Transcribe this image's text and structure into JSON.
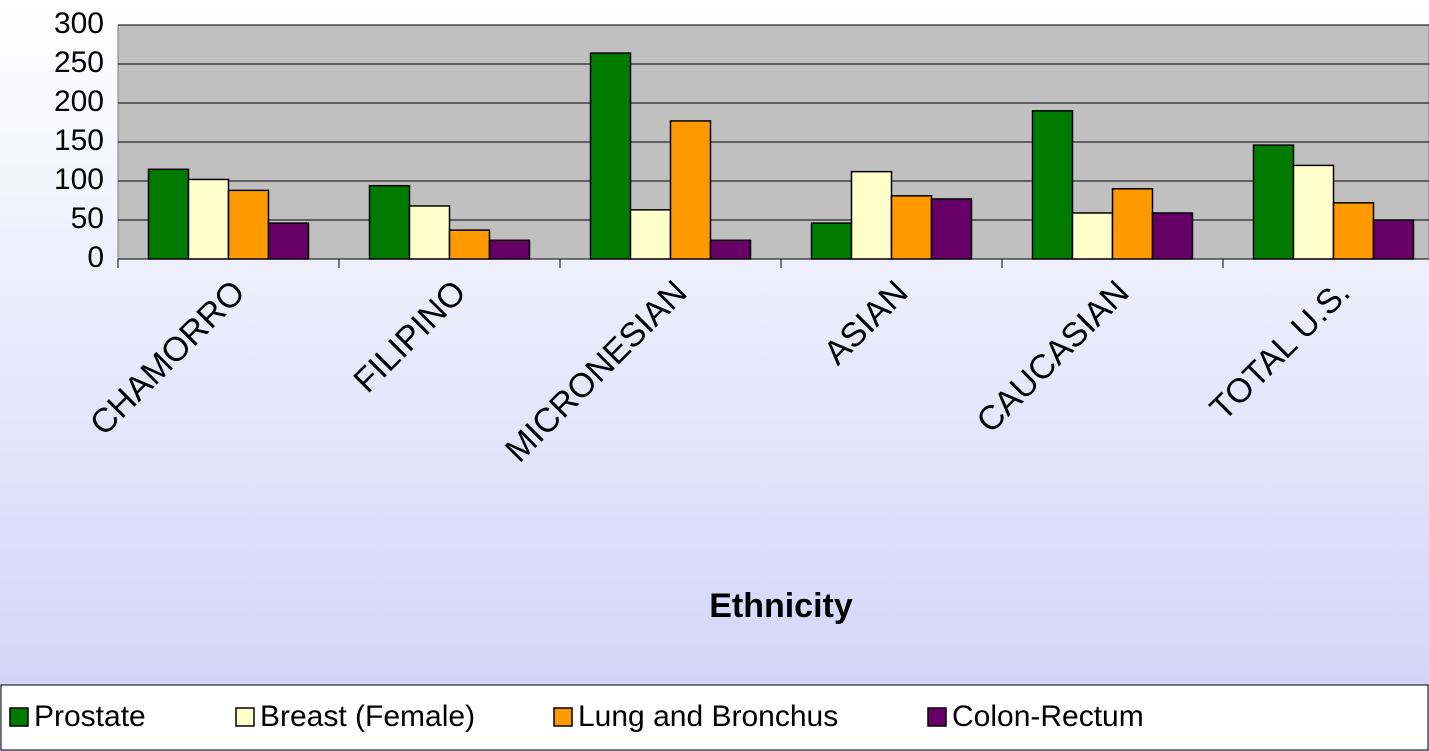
{
  "chart_data": {
    "type": "bar",
    "x_label": "Ethnicity",
    "categories": [
      "CHAMORRO",
      "FILIPINO",
      "MICRONESIAN",
      "ASIAN",
      "CAUCASIAN",
      "TOTAL U.S."
    ],
    "series": [
      {
        "name": "Prostate",
        "color": "#007a00",
        "values": [
          115,
          94,
          264,
          46,
          190,
          146
        ]
      },
      {
        "name": "Breast (Female)",
        "color": "#ffffcc",
        "values": [
          102,
          68,
          63,
          112,
          59,
          120
        ]
      },
      {
        "name": "Lung and Bronchus",
        "color": "#ff9900",
        "values": [
          88,
          37,
          177,
          81,
          90,
          72
        ]
      },
      {
        "name": "Colon-Rectum",
        "color": "#660066",
        "values": [
          46,
          24,
          24,
          77,
          59,
          50
        ]
      }
    ],
    "ylim": [
      0,
      300
    ],
    "yticks": [
      0,
      50,
      100,
      150,
      200,
      250,
      300
    ],
    "grid": true,
    "legend": "bottom"
  }
}
